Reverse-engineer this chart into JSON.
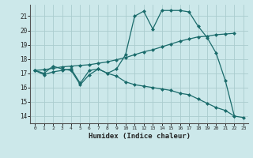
{
  "title": "",
  "xlabel": "Humidex (Indice chaleur)",
  "bg_color": "#cce8ea",
  "grid_color": "#aaccce",
  "line_color": "#1a6b6b",
  "xlim": [
    -0.5,
    23.5
  ],
  "ylim": [
    13.5,
    21.8
  ],
  "yticks": [
    14,
    15,
    16,
    17,
    18,
    19,
    20,
    21
  ],
  "xticks": [
    0,
    1,
    2,
    3,
    4,
    5,
    6,
    7,
    8,
    9,
    10,
    11,
    12,
    13,
    14,
    15,
    16,
    17,
    18,
    19,
    20,
    21,
    22,
    23
  ],
  "line1_x": [
    0,
    1,
    2,
    3,
    4,
    5,
    6,
    7,
    8,
    9,
    10,
    11,
    12,
    13,
    14,
    15,
    16,
    17,
    18,
    19,
    20,
    21,
    22
  ],
  "line1_y": [
    17.2,
    16.9,
    17.1,
    17.2,
    17.3,
    16.3,
    17.2,
    17.3,
    17.0,
    17.3,
    18.3,
    21.0,
    21.35,
    20.1,
    21.4,
    21.4,
    21.4,
    21.3,
    20.3,
    19.5,
    18.4,
    16.5,
    14.0
  ],
  "line2_x": [
    0,
    1,
    2,
    3,
    4,
    5,
    6,
    7,
    8,
    9,
    10,
    11,
    12,
    13,
    14,
    15,
    16,
    17,
    18,
    19,
    20,
    21,
    22
  ],
  "line2_y": [
    17.2,
    17.25,
    17.35,
    17.45,
    17.5,
    17.55,
    17.6,
    17.7,
    17.8,
    17.95,
    18.1,
    18.3,
    18.5,
    18.65,
    18.85,
    19.05,
    19.25,
    19.4,
    19.55,
    19.6,
    19.7,
    19.75,
    19.8
  ],
  "line3_x": [
    0,
    1,
    2,
    3,
    4,
    5,
    6,
    7,
    8,
    9,
    10,
    11,
    12,
    13,
    14,
    15,
    16,
    17,
    18,
    19,
    20,
    21,
    22,
    23
  ],
  "line3_y": [
    17.2,
    17.0,
    17.5,
    17.3,
    17.2,
    16.2,
    16.9,
    17.3,
    17.0,
    16.8,
    16.4,
    16.2,
    16.1,
    16.0,
    15.9,
    15.8,
    15.6,
    15.5,
    15.2,
    14.9,
    14.6,
    14.4,
    14.0,
    13.9
  ]
}
